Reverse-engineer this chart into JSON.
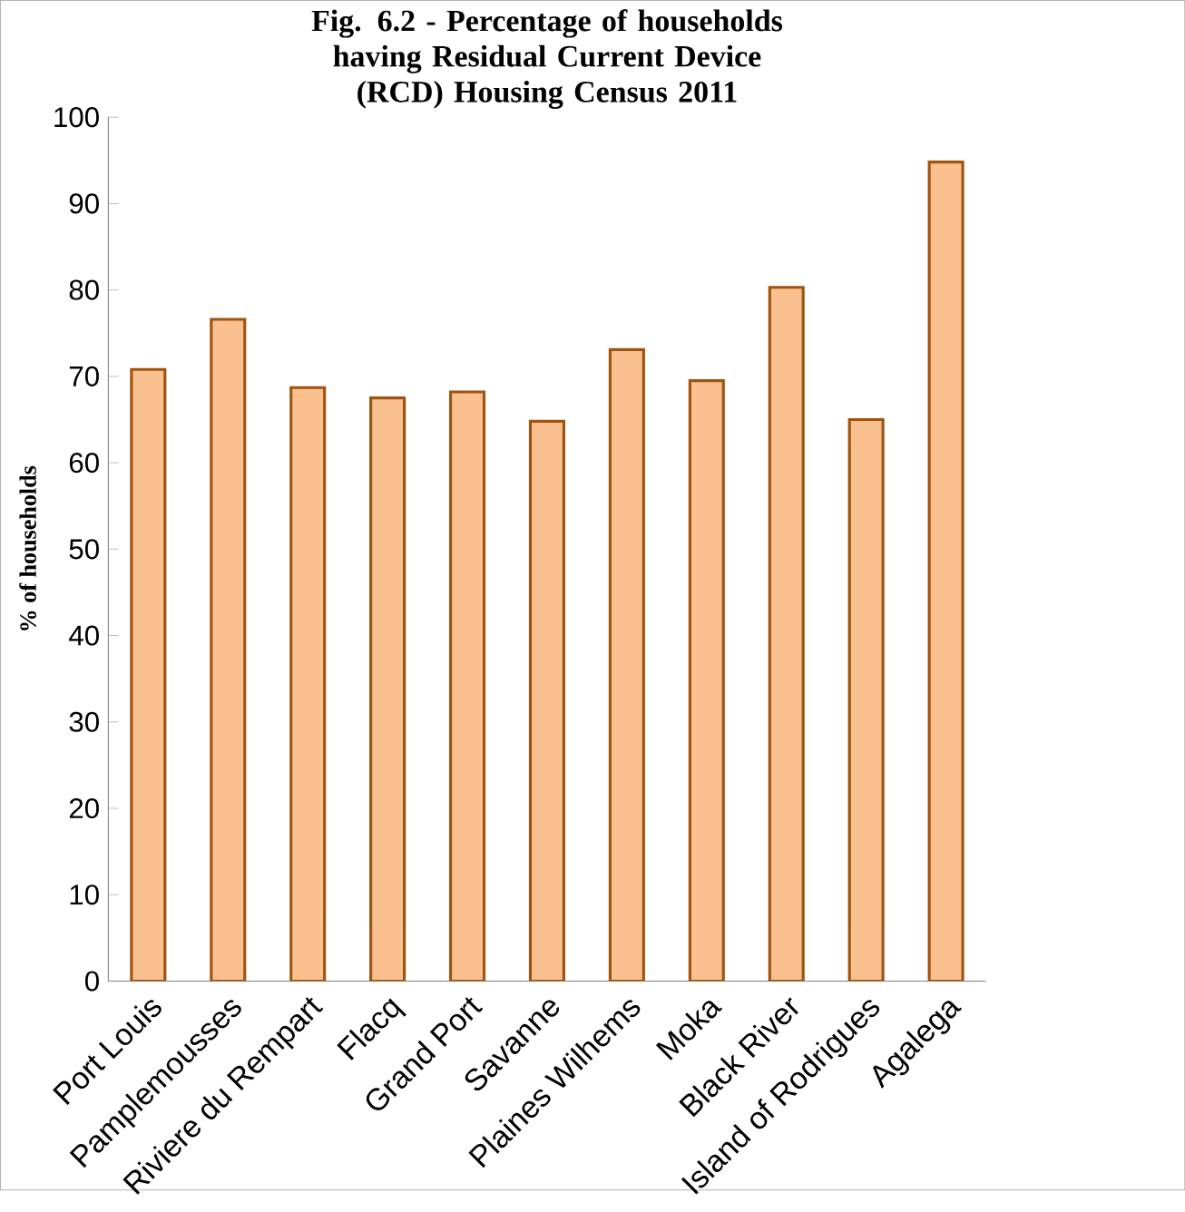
{
  "chart_data": {
    "type": "bar",
    "title": "Fig. 6.2 - Percentage of households having Residual Current Device (RCD) Housing Census 2011",
    "ylabel": "% of households",
    "categories": [
      "Port Louis",
      "Pamplemousses",
      "Riviere du Rempart",
      "Flacq",
      "Grand Port",
      "Savanne",
      "Plaines Wilhems",
      "Moka",
      "Black River",
      "Island of Rodrigues",
      "Agalega"
    ],
    "values": [
      70.8,
      76.6,
      68.7,
      67.5,
      68.2,
      64.8,
      73.1,
      69.5,
      80.3,
      65.0,
      94.8
    ],
    "color": "#fbc08f",
    "ylim": [
      0,
      100
    ],
    "yticks": [
      0,
      10,
      20,
      30,
      40,
      50,
      60,
      70,
      80,
      90,
      100
    ]
  }
}
